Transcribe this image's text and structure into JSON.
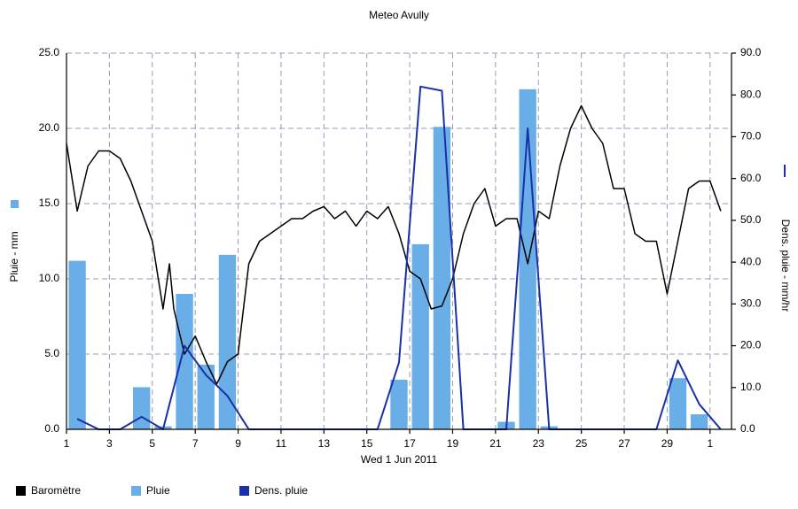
{
  "chart_data": {
    "type": "combo",
    "title": "Meteo  Avully",
    "xlabel": "Wed 1 Jun 2011",
    "ylabel": "Pluie - mm",
    "y2label": "Dens. pluie - mm/hr",
    "xlim": [
      0,
      31
    ],
    "xticks": [
      {
        "value": 0,
        "label": "1"
      },
      {
        "value": 2,
        "label": "3"
      },
      {
        "value": 4,
        "label": "5"
      },
      {
        "value": 6,
        "label": "7"
      },
      {
        "value": 8,
        "label": "9"
      },
      {
        "value": 10,
        "label": "11"
      },
      {
        "value": 12,
        "label": "13"
      },
      {
        "value": 14,
        "label": "15"
      },
      {
        "value": 16,
        "label": "17"
      },
      {
        "value": 18,
        "label": "19"
      },
      {
        "value": 20,
        "label": "21"
      },
      {
        "value": 22,
        "label": "23"
      },
      {
        "value": 24,
        "label": "25"
      },
      {
        "value": 26,
        "label": "27"
      },
      {
        "value": 28,
        "label": "29"
      },
      {
        "value": 30,
        "label": "1"
      }
    ],
    "ylim": [
      0,
      25
    ],
    "yticks": [
      {
        "value": 0,
        "label": "0.0"
      },
      {
        "value": 5,
        "label": "5.0"
      },
      {
        "value": 10,
        "label": "10.0"
      },
      {
        "value": 15,
        "label": "15.0"
      },
      {
        "value": 20,
        "label": "20.0"
      },
      {
        "value": 25,
        "label": "25.0"
      }
    ],
    "y2lim": [
      0,
      90
    ],
    "y2ticks": [
      {
        "value": 0,
        "label": "0.0"
      },
      {
        "value": 10,
        "label": "10.0"
      },
      {
        "value": 20,
        "label": "20.0"
      },
      {
        "value": 30,
        "label": "30.0"
      },
      {
        "value": 40,
        "label": "40.0"
      },
      {
        "value": 50,
        "label": "50.0"
      },
      {
        "value": 60,
        "label": "60.0"
      },
      {
        "value": 70,
        "label": "70.0"
      },
      {
        "value": 80,
        "label": "80.0"
      },
      {
        "value": 90,
        "label": "90.0"
      }
    ],
    "grid": true,
    "legend": "bottom",
    "series": [
      {
        "name": "Baromètre",
        "type": "line",
        "color": "#000000",
        "x": [
          0,
          0.5,
          1,
          1.5,
          2,
          2.5,
          3,
          3.5,
          4,
          4.5,
          4.8,
          5,
          5.5,
          6,
          6.5,
          7,
          7.5,
          8,
          8.5,
          9,
          9.5,
          10,
          10.5,
          11,
          11.5,
          12,
          12.5,
          13,
          13.5,
          14,
          14.5,
          15,
          15.5,
          16,
          16.5,
          17,
          17.5,
          18,
          18.5,
          19,
          19.5,
          20,
          20.5,
          21,
          21.5,
          22,
          22.5,
          23,
          23.5,
          24,
          24.5,
          25,
          25.5,
          26,
          26.5,
          27,
          27.5,
          28,
          28.5,
          29,
          29.5,
          30,
          30.5
        ],
        "values": [
          19,
          14.5,
          17.5,
          18.5,
          18.5,
          18,
          16.5,
          14.5,
          12.5,
          8,
          11,
          8,
          5,
          6.2,
          4.5,
          3,
          4.5,
          5,
          11,
          12.5,
          13,
          13.5,
          14,
          14,
          14.5,
          14.8,
          14,
          14.5,
          13.5,
          14.5,
          14,
          14.8,
          13,
          10.5,
          10,
          8,
          8.2,
          10,
          13,
          15,
          16,
          13.5,
          14,
          14,
          11,
          14.5,
          14,
          17.5,
          20,
          21.5,
          20,
          19,
          16,
          16,
          13,
          12.5,
          12.5,
          9,
          12.5,
          16,
          16.5,
          16.5,
          14.5
        ]
      },
      {
        "name": "Pluie",
        "type": "bar",
        "color": "#6aaee8",
        "x": [
          0.5,
          3.5,
          4.5,
          5.5,
          6.5,
          7.5,
          15.5,
          16.5,
          17.5,
          20.5,
          21.5,
          22.5,
          28.5,
          29.5
        ],
        "values": [
          11.2,
          2.8,
          0.2,
          9.0,
          4.3,
          11.6,
          3.3,
          12.3,
          20.1,
          0.5,
          22.6,
          0.2,
          3.4,
          1.0
        ]
      },
      {
        "name": "Dens. pluie",
        "type": "line",
        "axis": "y2",
        "color": "#1a2fa8",
        "x": [
          0.5,
          1.5,
          2.5,
          3.5,
          4.5,
          5.5,
          6.5,
          7.5,
          8.5,
          14.5,
          15.5,
          16.5,
          17.5,
          18.5,
          20.5,
          21.5,
          22.5,
          27.5,
          28.5,
          29.5,
          30.5
        ],
        "values": [
          2.5,
          0,
          0,
          3,
          0,
          20,
          13,
          8,
          0,
          0,
          16,
          82,
          81,
          0,
          0,
          72,
          0,
          0,
          16.5,
          6,
          0
        ]
      }
    ]
  }
}
